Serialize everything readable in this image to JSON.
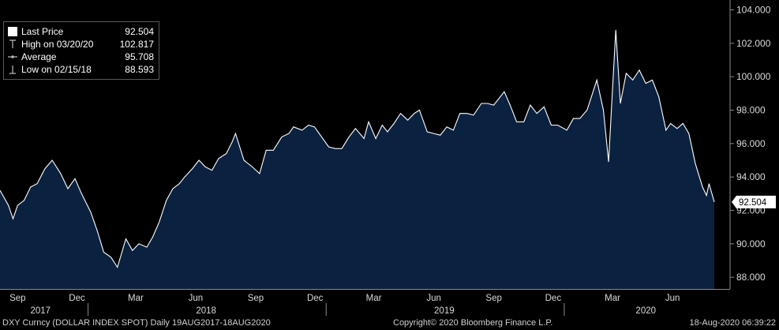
{
  "legend": {
    "last": {
      "label": "Last Price",
      "value": "92.504"
    },
    "high": {
      "label": "High on 03/20/20",
      "value": "102.817"
    },
    "average": {
      "label": "Average",
      "value": "95.708"
    },
    "low": {
      "label": "Low on 02/15/18",
      "value": "88.593"
    }
  },
  "footer": {
    "left": "DXY Curncy (DOLLAR INDEX SPOT)  Daily 19AUG2017-18AUG2020",
    "center": "Copyright© 2020 Bloomberg Finance L.P.",
    "right": "18-Aug-2020 06:39:22"
  },
  "chart_data": {
    "type": "area",
    "ylim": [
      87.3,
      104.4
    ],
    "y_ticks": [
      "88.000",
      "90.000",
      "92.000",
      "94.000",
      "96.000",
      "98.000",
      "100.000",
      "102.000",
      "104.000"
    ],
    "last_price_label": "92.504",
    "month_labels": [
      "Sep",
      "Dec",
      "Mar",
      "Jun",
      "Sep",
      "Dec",
      "Mar",
      "Jun",
      "Sep",
      "Dec",
      "Mar",
      "Jun"
    ],
    "year_labels": [
      "2017",
      "2018",
      "2019",
      "2020"
    ],
    "colors": {
      "fill": "#0b2140",
      "line": "#ffffff",
      "axis": "#8a8a8a"
    },
    "series": [
      {
        "x": [
          "2017-08-19",
          "2017-09-01",
          "2017-09-08",
          "2017-09-15",
          "2017-09-25",
          "2017-10-05",
          "2017-10-15",
          "2017-10-27",
          "2017-11-07",
          "2017-11-20",
          "2017-12-01",
          "2017-12-12",
          "2017-12-22",
          "2018-01-05",
          "2018-01-15",
          "2018-01-25",
          "2018-02-05",
          "2018-02-15",
          "2018-02-28",
          "2018-03-10",
          "2018-03-20",
          "2018-04-01",
          "2018-04-10",
          "2018-04-20",
          "2018-05-01",
          "2018-05-11",
          "2018-05-21",
          "2018-05-29",
          "2018-06-10",
          "2018-06-20",
          "2018-06-30",
          "2018-07-10",
          "2018-07-20",
          "2018-08-01",
          "2018-08-10",
          "2018-08-15",
          "2018-08-28",
          "2018-09-10",
          "2018-09-21",
          "2018-10-01",
          "2018-10-12",
          "2018-10-25",
          "2018-11-05",
          "2018-11-12",
          "2018-11-25",
          "2018-12-05",
          "2018-12-14",
          "2018-12-25",
          "2019-01-05",
          "2019-01-15",
          "2019-01-25",
          "2019-02-05",
          "2019-02-15",
          "2019-02-28",
          "2019-03-07",
          "2019-03-18",
          "2019-03-28",
          "2019-04-05",
          "2019-04-15",
          "2019-04-25",
          "2019-05-06",
          "2019-05-16",
          "2019-05-24",
          "2019-06-05",
          "2019-06-15",
          "2019-06-25",
          "2019-07-05",
          "2019-07-15",
          "2019-07-25",
          "2019-08-05",
          "2019-08-15",
          "2019-08-27",
          "2019-09-05",
          "2019-09-15",
          "2019-10-01",
          "2019-10-10",
          "2019-10-20",
          "2019-10-31",
          "2019-11-10",
          "2019-11-20",
          "2019-12-01",
          "2019-12-12",
          "2019-12-22",
          "2020-01-05",
          "2020-01-15",
          "2020-01-25",
          "2020-02-05",
          "2020-02-20",
          "2020-03-01",
          "2020-03-09",
          "2020-03-14",
          "2020-03-20",
          "2020-03-27",
          "2020-04-05",
          "2020-04-15",
          "2020-04-25",
          "2020-05-05",
          "2020-05-15",
          "2020-05-25",
          "2020-06-05",
          "2020-06-12",
          "2020-06-22",
          "2020-07-01",
          "2020-07-10",
          "2020-07-20",
          "2020-07-31",
          "2020-08-06",
          "2020-08-10",
          "2020-08-18"
        ],
        "y": [
          93.2,
          92.3,
          91.5,
          92.3,
          92.6,
          93.4,
          93.6,
          94.5,
          95.0,
          94.2,
          93.3,
          93.9,
          93.0,
          91.9,
          90.8,
          89.5,
          89.2,
          88.6,
          90.3,
          89.6,
          90.0,
          89.8,
          90.4,
          91.3,
          92.6,
          93.3,
          93.6,
          94.0,
          94.5,
          95.0,
          94.6,
          94.4,
          95.1,
          95.4,
          96.1,
          96.6,
          95.0,
          94.6,
          94.2,
          95.6,
          95.6,
          96.4,
          96.6,
          97.0,
          96.8,
          97.1,
          97.0,
          96.4,
          95.8,
          95.7,
          95.7,
          96.4,
          96.9,
          96.3,
          97.3,
          96.3,
          97.1,
          96.7,
          97.2,
          97.8,
          97.4,
          97.8,
          98.0,
          96.7,
          96.6,
          96.5,
          97.0,
          96.8,
          97.8,
          97.8,
          97.7,
          98.4,
          98.4,
          98.3,
          99.1,
          98.3,
          97.3,
          97.3,
          98.3,
          97.8,
          98.2,
          97.1,
          97.1,
          96.8,
          97.5,
          97.5,
          98.0,
          99.8,
          98.0,
          94.9,
          98.5,
          102.8,
          98.4,
          100.2,
          99.8,
          100.4,
          99.6,
          99.8,
          98.8,
          96.8,
          97.2,
          96.9,
          97.2,
          96.6,
          94.8,
          93.4,
          92.9,
          93.6,
          92.5
        ]
      }
    ]
  }
}
